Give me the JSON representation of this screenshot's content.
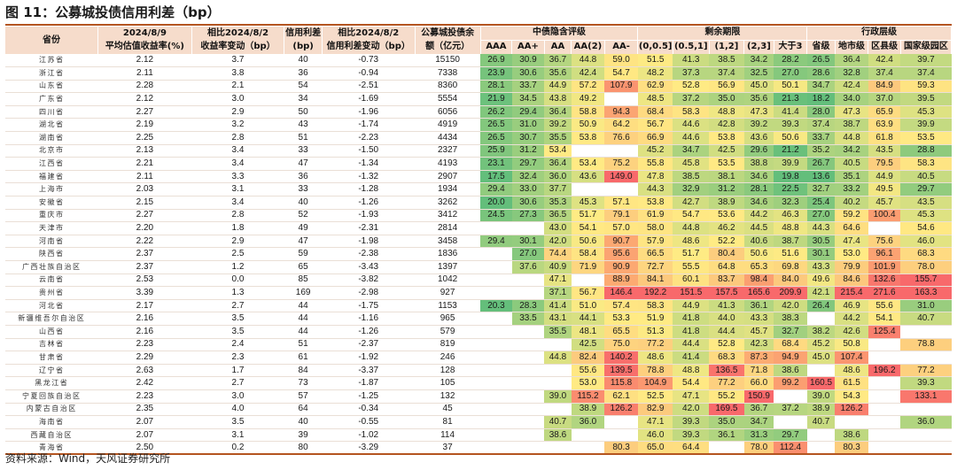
{
  "title": "图 11：公募城投债信用利差（bp）",
  "source": "资料来源：Wind，天风证券研究所",
  "headers": {
    "province": "省份",
    "yield_top": "2024/8/9",
    "yield_bottom": "平均估值收益率(%)",
    "chg_top": "相比2024/8/2",
    "chg_bottom": "收益率变动（bp）",
    "spread_top": "信用利差",
    "spread_bottom": "(bp)",
    "spreadchg_top": "相比2024/8/2",
    "spreadchg_bottom": "信用利差变动（bp）",
    "balance_top": "公募城投债余",
    "balance_bottom": "额（亿元）",
    "group_rating": "中债隐含评级",
    "group_term": "剩余期限",
    "group_admin": "行政层级",
    "rating_cols": [
      "AAA",
      "AA+",
      "AA",
      "AA(2)",
      "AA-"
    ],
    "term_cols": [
      "(0,0.5]",
      "(0.5,1]",
      "(1,2]",
      "(2,3]",
      "大于3"
    ],
    "admin_cols": [
      "省级",
      "地市级",
      "区县级",
      "国家级园区"
    ]
  },
  "rows": [
    {
      "p": "江苏省",
      "y": "2.12",
      "c": "3.7",
      "s": "40",
      "sc": "-0.73",
      "b": "15150",
      "r": [
        "26.9",
        "30.9",
        "36.7",
        "44.8",
        "59.0"
      ],
      "t": [
        "51.5",
        "41.3",
        "38.5",
        "34.2",
        "28.2"
      ],
      "a": [
        "26.5",
        "36.4",
        "42.4",
        "39.7"
      ]
    },
    {
      "p": "浙江省",
      "y": "2.11",
      "c": "3.8",
      "s": "36",
      "sc": "-0.94",
      "b": "7338",
      "r": [
        "23.9",
        "30.6",
        "35.6",
        "42.4",
        "54.7"
      ],
      "t": [
        "48.2",
        "37.3",
        "37.4",
        "32.5",
        "27.0"
      ],
      "a": [
        "28.6",
        "32.8",
        "37.4",
        "37.4"
      ]
    },
    {
      "p": "山东省",
      "y": "2.28",
      "c": "2.1",
      "s": "54",
      "sc": "-2.51",
      "b": "8360",
      "r": [
        "28.1",
        "33.7",
        "44.9",
        "57.2",
        "107.9"
      ],
      "t": [
        "62.9",
        "52.8",
        "56.9",
        "45.0",
        "50.1"
      ],
      "a": [
        "34.7",
        "42.4",
        "84.9",
        "59.3"
      ]
    },
    {
      "p": "广东省",
      "y": "2.12",
      "c": "3.0",
      "s": "34",
      "sc": "-1.69",
      "b": "5554",
      "r": [
        "21.9",
        "34.5",
        "43.8",
        "49.2",
        ""
      ],
      "t": [
        "48.5",
        "37.2",
        "35.0",
        "35.6",
        "21.3"
      ],
      "a": [
        "18.2",
        "34.0",
        "37.0",
        "39.5"
      ]
    },
    {
      "p": "四川省",
      "y": "2.27",
      "c": "2.9",
      "s": "50",
      "sc": "-1.96",
      "b": "6056",
      "r": [
        "26.2",
        "29.4",
        "36.4",
        "58.8",
        "94.3"
      ],
      "t": [
        "68.4",
        "58.3",
        "48.8",
        "47.3",
        "41.4"
      ],
      "a": [
        "28.0",
        "47.3",
        "65.9",
        "45.3"
      ]
    },
    {
      "p": "湖北省",
      "y": "2.19",
      "c": "3.2",
      "s": "43",
      "sc": "-1.74",
      "b": "4919",
      "r": [
        "26.5",
        "31.0",
        "39.2",
        "50.9",
        "64.2"
      ],
      "t": [
        "56.7",
        "44.6",
        "42.8",
        "39.2",
        "39.3"
      ],
      "a": [
        "37.4",
        "38.7",
        "63.9",
        "39.9"
      ]
    },
    {
      "p": "湖南省",
      "y": "2.25",
      "c": "2.8",
      "s": "51",
      "sc": "-2.23",
      "b": "4434",
      "r": [
        "26.5",
        "30.7",
        "35.5",
        "53.8",
        "76.6"
      ],
      "t": [
        "66.9",
        "44.6",
        "53.8",
        "43.6",
        "50.6"
      ],
      "a": [
        "33.7",
        "44.8",
        "61.8",
        "53.5"
      ]
    },
    {
      "p": "北京市",
      "y": "2.13",
      "c": "3.4",
      "s": "33",
      "sc": "-1.50",
      "b": "2327",
      "r": [
        "25.9",
        "31.2",
        "53.4",
        "",
        ""
      ],
      "t": [
        "45.2",
        "34.7",
        "42.5",
        "29.6",
        "21.2"
      ],
      "a": [
        "35.2",
        "34.2",
        "43.5",
        "28.8"
      ]
    },
    {
      "p": "江西省",
      "y": "2.21",
      "c": "3.4",
      "s": "47",
      "sc": "-1.34",
      "b": "4193",
      "r": [
        "23.1",
        "29.7",
        "36.4",
        "53.4",
        "75.2"
      ],
      "t": [
        "55.8",
        "45.8",
        "53.5",
        "38.8",
        "39.9"
      ],
      "a": [
        "26.7",
        "40.5",
        "79.5",
        "58.3"
      ]
    },
    {
      "p": "福建省",
      "y": "2.11",
      "c": "3.3",
      "s": "36",
      "sc": "-1.32",
      "b": "2907",
      "r": [
        "17.5",
        "32.4",
        "36.0",
        "43.6",
        "149.0"
      ],
      "t": [
        "47.8",
        "38.5",
        "38.1",
        "34.6",
        "19.8"
      ],
      "a": [
        "13.6",
        "35.1",
        "44.9",
        "40.5"
      ]
    },
    {
      "p": "上海市",
      "y": "2.03",
      "c": "3.1",
      "s": "33",
      "sc": "-1.28",
      "b": "1934",
      "r": [
        "29.4",
        "33.0",
        "37.7",
        "",
        ""
      ],
      "t": [
        "44.3",
        "32.9",
        "31.2",
        "28.1",
        "22.5"
      ],
      "a": [
        "32.7",
        "33.2",
        "49.5",
        "29.7"
      ]
    },
    {
      "p": "安徽省",
      "y": "2.15",
      "c": "3.4",
      "s": "40",
      "sc": "-1.26",
      "b": "3262",
      "r": [
        "20.0",
        "30.6",
        "35.3",
        "45.3",
        "57.1"
      ],
      "t": [
        "53.8",
        "42.7",
        "38.9",
        "34.6",
        "32.3"
      ],
      "a": [
        "25.4",
        "40.2",
        "45.7",
        "43.5"
      ]
    },
    {
      "p": "重庆市",
      "y": "2.27",
      "c": "2.8",
      "s": "52",
      "sc": "-1.93",
      "b": "3412",
      "r": [
        "24.5",
        "27.3",
        "36.5",
        "51.7",
        "79.1"
      ],
      "t": [
        "61.9",
        "54.7",
        "53.6",
        "44.2",
        "46.3"
      ],
      "a": [
        "27.0",
        "59.2",
        "100.4",
        "45.3"
      ]
    },
    {
      "p": "天津市",
      "y": "2.20",
      "c": "1.8",
      "s": "49",
      "sc": "-2.31",
      "b": "2814",
      "r": [
        "",
        "",
        "43.0",
        "54.1",
        "57.0"
      ],
      "t": [
        "58.0",
        "44.8",
        "46.2",
        "44.5",
        "48.8"
      ],
      "a": [
        "44.3",
        "64.6",
        "",
        "54.6"
      ]
    },
    {
      "p": "河南省",
      "y": "2.22",
      "c": "2.9",
      "s": "47",
      "sc": "-1.98",
      "b": "3458",
      "r": [
        "29.4",
        "30.1",
        "42.0",
        "50.6",
        "90.7"
      ],
      "t": [
        "57.9",
        "48.6",
        "52.2",
        "40.6",
        "38.7"
      ],
      "a": [
        "30.5",
        "47.4",
        "75.6",
        "46.0"
      ]
    },
    {
      "p": "陕西省",
      "y": "2.37",
      "c": "2.5",
      "s": "59",
      "sc": "-2.38",
      "b": "1836",
      "r": [
        "",
        "27.0",
        "74.4",
        "58.4",
        "95.6"
      ],
      "t": [
        "66.5",
        "51.7",
        "80.4",
        "50.6",
        "51.6"
      ],
      "a": [
        "30.1",
        "53.0",
        "96.1",
        "68.3"
      ]
    },
    {
      "p": "广西壮族自治区",
      "y": "2.37",
      "c": "1.2",
      "s": "65",
      "sc": "-3.43",
      "b": "1397",
      "r": [
        "",
        "37.6",
        "40.9",
        "71.9",
        "90.9"
      ],
      "t": [
        "72.7",
        "55.5",
        "64.8",
        "65.3",
        "69.8"
      ],
      "a": [
        "43.3",
        "79.9",
        "101.9",
        "78.0"
      ]
    },
    {
      "p": "云南省",
      "y": "2.53",
      "c": "0.0",
      "s": "85",
      "sc": "-3.82",
      "b": "1042",
      "r": [
        "",
        "",
        "47.1",
        "",
        "88.9"
      ],
      "t": [
        "84.1",
        "60.1",
        "83.7",
        "98.4",
        "84.0"
      ],
      "a": [
        "49.6",
        "84.6",
        "132.6",
        "155.7"
      ]
    },
    {
      "p": "贵州省",
      "y": "3.39",
      "c": "1.3",
      "s": "169",
      "sc": "-2.98",
      "b": "927",
      "r": [
        "",
        "",
        "37.1",
        "56.7",
        "146.4"
      ],
      "t": [
        "192.2",
        "151.5",
        "157.5",
        "165.6",
        "209.9"
      ],
      "a": [
        "42.1",
        "215.4",
        "271.6",
        "163.3"
      ]
    },
    {
      "p": "河北省",
      "y": "2.17",
      "c": "2.7",
      "s": "44",
      "sc": "-1.75",
      "b": "1153",
      "r": [
        "20.3",
        "28.3",
        "41.4",
        "51.0",
        "57.4"
      ],
      "t": [
        "58.3",
        "44.9",
        "41.3",
        "36.1",
        "42.0"
      ],
      "a": [
        "26.4",
        "46.9",
        "55.6",
        "31.0"
      ]
    },
    {
      "p": "新疆维吾尔自治区",
      "y": "2.16",
      "c": "3.5",
      "s": "44",
      "sc": "-1.16",
      "b": "965",
      "r": [
        "",
        "33.5",
        "43.1",
        "44.1",
        "53.3"
      ],
      "t": [
        "51.9",
        "41.8",
        "44.0",
        "43.3",
        "38.3"
      ],
      "a": [
        "",
        "44.2",
        "54.1",
        "40.7"
      ]
    },
    {
      "p": "山西省",
      "y": "2.16",
      "c": "3.5",
      "s": "44",
      "sc": "-1.26",
      "b": "579",
      "r": [
        "",
        "",
        "35.5",
        "48.1",
        "65.5"
      ],
      "t": [
        "51.3",
        "41.8",
        "44.4",
        "45.7",
        "32.7"
      ],
      "a": [
        "38.2",
        "42.6",
        "125.4",
        ""
      ]
    },
    {
      "p": "吉林省",
      "y": "2.23",
      "c": "2.4",
      "s": "51",
      "sc": "-2.37",
      "b": "819",
      "r": [
        "",
        "",
        "",
        "42.5",
        "75.0"
      ],
      "t": [
        "77.2",
        "44.4",
        "52.8",
        "42.3",
        "68.4"
      ],
      "a": [
        "45.2",
        "50.8",
        "",
        "78.8"
      ]
    },
    {
      "p": "甘肃省",
      "y": "2.29",
      "c": "2.3",
      "s": "61",
      "sc": "-1.92",
      "b": "246",
      "r": [
        "",
        "",
        "44.8",
        "82.4",
        "140.2"
      ],
      "t": [
        "48.6",
        "41.4",
        "68.3",
        "87.3",
        "94.9"
      ],
      "a": [
        "45.0",
        "107.4",
        "",
        ""
      ]
    },
    {
      "p": "辽宁省",
      "y": "2.63",
      "c": "1.7",
      "s": "84",
      "sc": "-3.37",
      "b": "128",
      "r": [
        "",
        "",
        "",
        "55.6",
        "139.5"
      ],
      "t": [
        "78.8",
        "48.8",
        "136.5",
        "71.8",
        "38.6"
      ],
      "a": [
        "",
        "48.6",
        "196.2",
        "77.2"
      ]
    },
    {
      "p": "黑龙江省",
      "y": "2.42",
      "c": "2.7",
      "s": "73",
      "sc": "-1.87",
      "b": "105",
      "r": [
        "",
        "",
        "",
        "53.0",
        "115.8"
      ],
      "t": [
        "104.9",
        "54.4",
        "77.2",
        "66.0",
        "99.2"
      ],
      "a": [
        "160.5",
        "61.5",
        "",
        "39.3"
      ]
    },
    {
      "p": "宁夏回族自治区",
      "y": "2.23",
      "c": "3.0",
      "s": "57",
      "sc": "-1.25",
      "b": "132",
      "r": [
        "",
        "",
        "39.0",
        "115.2",
        "62.1"
      ],
      "t": [
        "52.5",
        "47.1",
        "55.2",
        "150.9",
        ""
      ],
      "a": [
        "39.0",
        "54.3",
        "",
        "133.1"
      ]
    },
    {
      "p": "内蒙古自治区",
      "y": "2.35",
      "c": "4.0",
      "s": "64",
      "sc": "-0.34",
      "b": "45",
      "r": [
        "",
        "",
        "",
        "38.9",
        "126.2"
      ],
      "t": [
        "82.9",
        "42.0",
        "169.5",
        "36.7",
        "37.2"
      ],
      "a": [
        "38.9",
        "126.2",
        "",
        ""
      ]
    },
    {
      "p": "海南省",
      "y": "2.07",
      "c": "3.5",
      "s": "40",
      "sc": "-0.55",
      "b": "81",
      "r": [
        "",
        "",
        "40.7",
        "36.0",
        ""
      ],
      "t": [
        "47.1",
        "39.3",
        "35.0",
        "34.7",
        ""
      ],
      "a": [
        "40.7",
        "",
        "",
        "36.0"
      ]
    },
    {
      "p": "西藏自治区",
      "y": "2.07",
      "c": "3.1",
      "s": "39",
      "sc": "-1.02",
      "b": "114",
      "r": [
        "",
        "",
        "38.6",
        "",
        ""
      ],
      "t": [
        "46.0",
        "39.3",
        "36.1",
        "31.3",
        "29.7"
      ],
      "a": [
        "",
        "38.6",
        "",
        ""
      ]
    },
    {
      "p": "青海省",
      "y": "2.50",
      "c": "0.2",
      "s": "80",
      "sc": "-3.29",
      "b": "37",
      "r": [
        "",
        "",
        "",
        "",
        "80.3"
      ],
      "t": [
        "65.0",
        "64.4",
        "",
        "78.0",
        "112.4"
      ],
      "a": [
        "",
        "80.3",
        "",
        ""
      ]
    }
  ],
  "heatmap_colors": {
    "low": "#63be7b",
    "mid": "#ffeb84",
    "high": "#f8696b"
  },
  "colors": {
    "header_bg": "#f6dccb",
    "rule": "#b45520"
  }
}
